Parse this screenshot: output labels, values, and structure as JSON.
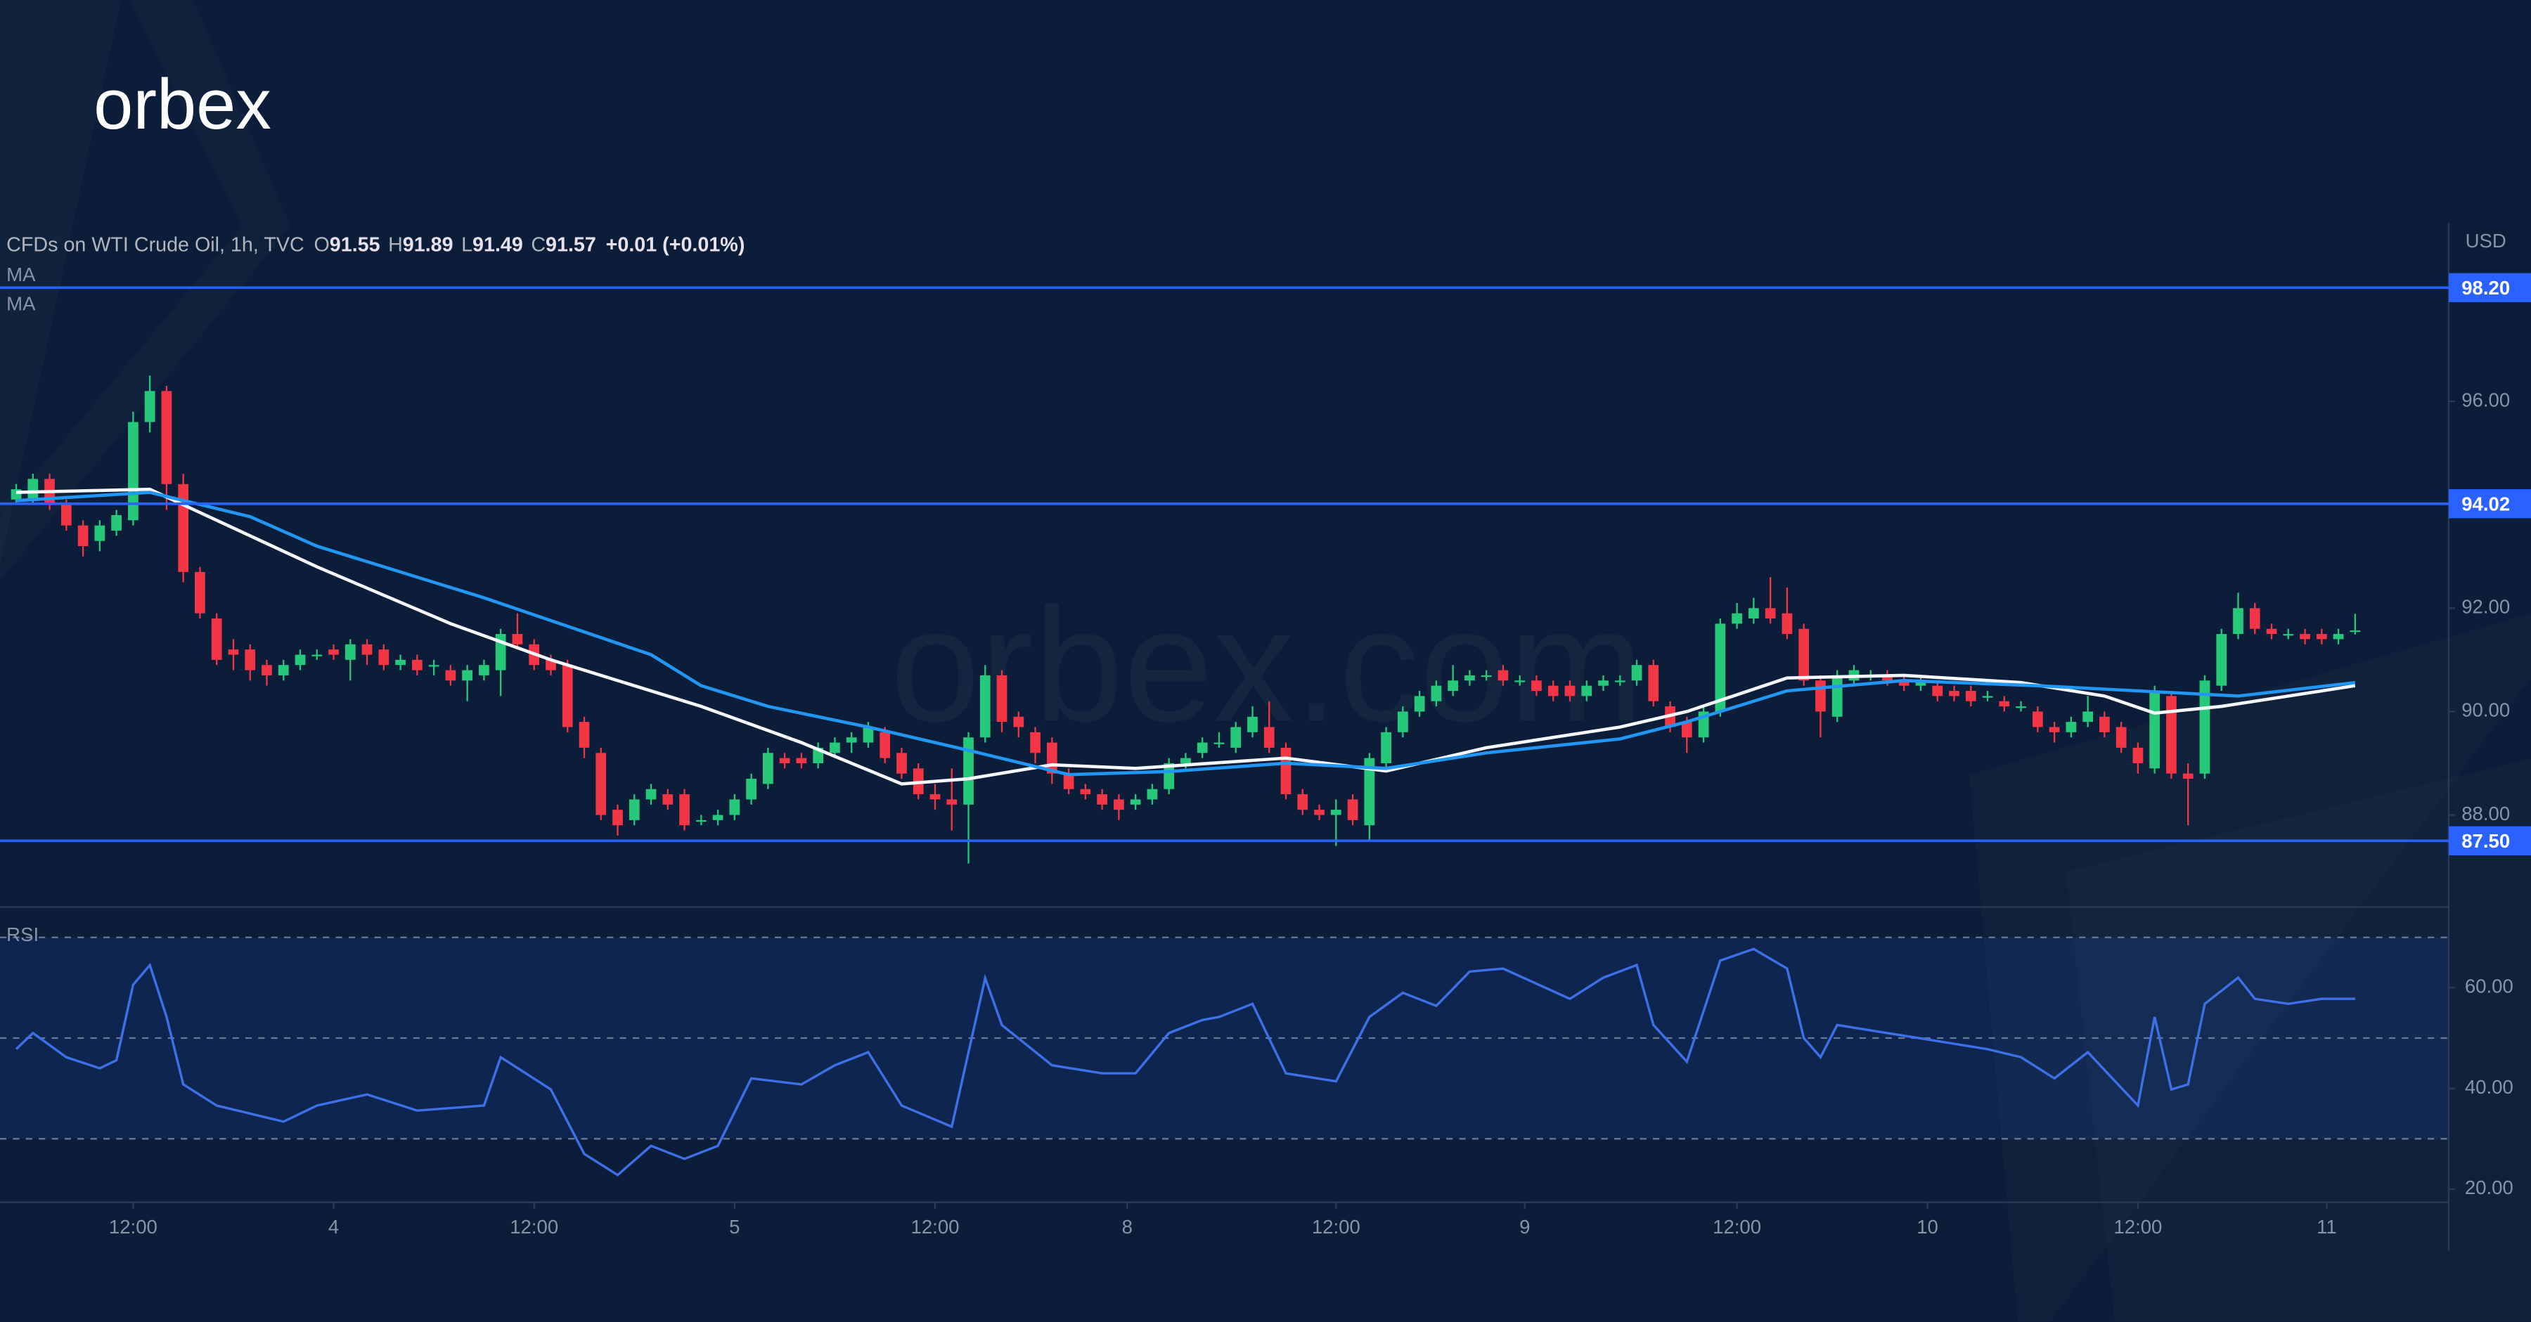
{
  "logo": "orbex",
  "watermark": "orbex.com",
  "chart_data": [
    {
      "type": "candlestick",
      "title": "CFDs on WTI Crude Oil, 1h, TVC",
      "currency": "USD",
      "ohlc_legend": [
        {
          "label": "O",
          "value": 91.55
        },
        {
          "label": "H",
          "value": 91.89
        },
        {
          "label": "L",
          "value": 91.49
        },
        {
          "label": "C",
          "value": 91.57
        }
      ],
      "change": "+0.01 (+0.01%)",
      "up_color": "#26c97a",
      "down_color": "#f23645",
      "xlim": [
        -0.97,
        145.6
      ],
      "ylim": [
        86.28,
        99.39
      ],
      "yticks": [
        {
          "value": 88,
          "label": "88.00"
        },
        {
          "value": 90,
          "label": "90.00"
        },
        {
          "value": 92,
          "label": "92.00"
        },
        {
          "value": 96,
          "label": "96.00"
        }
      ],
      "levels": [
        {
          "value": 98.2,
          "label": "98.20"
        },
        {
          "value": 94.02,
          "label": "94.02"
        },
        {
          "value": 87.5,
          "label": "87.50"
        }
      ],
      "level_color": "#2962ff",
      "open": [
        94.1,
        94.1,
        94.5,
        94.0,
        93.6,
        93.3,
        93.5,
        93.7,
        95.6,
        96.2,
        94.4,
        92.7,
        91.8,
        91.2,
        91.2,
        90.9,
        90.7,
        90.9,
        91.1,
        91.2,
        91.0,
        91.3,
        91.2,
        90.9,
        91.0,
        90.9,
        90.8,
        90.6,
        90.7,
        90.8,
        91.5,
        91.3,
        91.0,
        90.9,
        89.8,
        89.2,
        88.1,
        87.9,
        88.3,
        88.4,
        88.4,
        87.9,
        87.9,
        88.0,
        88.3,
        88.6,
        89.1,
        89.1,
        89.0,
        89.2,
        89.4,
        89.4,
        89.6,
        89.2,
        88.9,
        88.4,
        88.3,
        88.2,
        89.5,
        90.7,
        89.9,
        89.6,
        89.4,
        88.8,
        88.5,
        88.4,
        88.3,
        88.2,
        88.3,
        88.5,
        89.0,
        89.2,
        89.4,
        89.3,
        89.6,
        89.7,
        89.3,
        88.4,
        88.1,
        88.0,
        88.3,
        87.8,
        89.0,
        89.6,
        90.0,
        90.2,
        90.4,
        90.6,
        90.7,
        90.8,
        90.6,
        90.6,
        90.5,
        90.5,
        90.3,
        90.5,
        90.6,
        90.6,
        90.9,
        90.1,
        89.8,
        89.5,
        90.0,
        91.7,
        91.8,
        92.0,
        91.9,
        91.6,
        90.6,
        89.9,
        90.6,
        90.7,
        90.7,
        90.6,
        90.5,
        90.5,
        90.4,
        90.4,
        90.3,
        90.2,
        90.1,
        90.0,
        89.7,
        89.6,
        89.8,
        89.9,
        89.7,
        89.3,
        88.9,
        90.3,
        88.8,
        88.8,
        90.5,
        91.5,
        92.0,
        91.6,
        91.5,
        91.5,
        91.5,
        91.4,
        91.55
      ],
      "high": [
        94.4,
        94.6,
        94.6,
        94.1,
        93.7,
        93.7,
        93.9,
        95.8,
        96.5,
        96.3,
        94.6,
        92.8,
        91.9,
        91.4,
        91.3,
        91.0,
        91.0,
        91.2,
        91.2,
        91.3,
        91.4,
        91.4,
        91.3,
        91.1,
        91.1,
        91.0,
        90.9,
        90.9,
        91.0,
        91.6,
        91.9,
        91.4,
        91.1,
        91.0,
        89.9,
        89.3,
        88.2,
        88.4,
        88.6,
        88.5,
        88.5,
        88.0,
        88.1,
        88.4,
        88.8,
        89.3,
        89.2,
        89.2,
        89.4,
        89.5,
        89.6,
        89.8,
        89.7,
        89.3,
        89.0,
        88.6,
        88.9,
        89.6,
        90.9,
        90.8,
        90.0,
        89.7,
        89.5,
        88.9,
        88.6,
        88.5,
        88.4,
        88.4,
        88.6,
        89.1,
        89.2,
        89.5,
        89.6,
        89.8,
        90.1,
        90.2,
        89.4,
        88.5,
        88.2,
        88.3,
        88.4,
        89.2,
        89.7,
        90.1,
        90.4,
        90.6,
        90.9,
        90.8,
        90.8,
        90.9,
        90.7,
        90.7,
        90.6,
        90.6,
        90.6,
        90.7,
        90.7,
        91.0,
        91.0,
        90.2,
        89.9,
        90.1,
        91.8,
        92.1,
        92.2,
        92.6,
        92.4,
        91.7,
        90.7,
        90.8,
        90.9,
        90.8,
        90.8,
        90.7,
        90.7,
        90.6,
        90.5,
        90.5,
        90.4,
        90.3,
        90.2,
        90.1,
        89.8,
        89.9,
        90.3,
        90.0,
        89.8,
        89.4,
        90.5,
        90.4,
        89.0,
        90.7,
        91.6,
        92.3,
        92.1,
        91.7,
        91.6,
        91.6,
        91.6,
        91.6,
        91.89
      ],
      "low": [
        94.0,
        94.0,
        93.9,
        93.5,
        93.0,
        93.1,
        93.4,
        93.6,
        95.4,
        93.9,
        92.5,
        91.8,
        90.9,
        90.8,
        90.6,
        90.5,
        90.6,
        90.8,
        91.0,
        91.0,
        90.6,
        90.9,
        90.8,
        90.8,
        90.7,
        90.7,
        90.5,
        90.2,
        90.6,
        90.3,
        91.2,
        90.8,
        90.7,
        89.6,
        89.1,
        87.9,
        87.6,
        87.8,
        88.2,
        88.1,
        87.7,
        87.8,
        87.8,
        87.9,
        88.2,
        88.5,
        88.9,
        88.9,
        88.9,
        89.1,
        89.2,
        89.3,
        89.0,
        88.7,
        88.3,
        88.1,
        87.7,
        87.06,
        89.4,
        89.6,
        89.5,
        89.0,
        88.6,
        88.4,
        88.3,
        88.1,
        87.9,
        88.1,
        88.2,
        88.4,
        88.9,
        89.1,
        89.3,
        89.2,
        89.5,
        89.2,
        88.3,
        88.0,
        87.9,
        87.4,
        87.8,
        87.5,
        88.9,
        89.5,
        89.9,
        90.1,
        90.3,
        90.5,
        90.6,
        90.5,
        90.5,
        90.3,
        90.2,
        90.2,
        90.2,
        90.4,
        90.5,
        90.5,
        90.1,
        89.6,
        89.2,
        89.4,
        89.9,
        91.6,
        91.7,
        91.7,
        91.4,
        90.5,
        89.5,
        89.8,
        90.5,
        90.6,
        90.5,
        90.4,
        90.4,
        90.2,
        90.2,
        90.1,
        90.2,
        90.0,
        90.0,
        89.6,
        89.4,
        89.5,
        89.7,
        89.5,
        89.2,
        88.8,
        88.8,
        88.7,
        87.8,
        88.7,
        90.4,
        91.4,
        91.5,
        91.4,
        91.4,
        91.3,
        91.3,
        91.3,
        91.49
      ],
      "close": [
        94.3,
        94.5,
        94.0,
        93.6,
        93.2,
        93.6,
        93.8,
        95.6,
        96.2,
        94.4,
        92.7,
        91.9,
        91.0,
        91.1,
        90.8,
        90.7,
        90.9,
        91.1,
        91.1,
        91.1,
        91.3,
        91.1,
        90.9,
        91.0,
        90.8,
        90.9,
        90.6,
        90.8,
        90.9,
        91.5,
        91.3,
        90.9,
        90.8,
        89.7,
        89.3,
        88.0,
        87.8,
        88.3,
        88.5,
        88.2,
        87.8,
        87.9,
        88.0,
        88.3,
        88.7,
        89.2,
        89.0,
        89.0,
        89.3,
        89.4,
        89.5,
        89.7,
        89.1,
        88.8,
        88.4,
        88.3,
        88.2,
        89.5,
        90.7,
        89.8,
        89.7,
        89.2,
        88.8,
        88.5,
        88.4,
        88.2,
        88.1,
        88.3,
        88.5,
        89.0,
        89.1,
        89.4,
        89.4,
        89.7,
        89.9,
        89.3,
        88.4,
        88.1,
        88.0,
        88.1,
        87.9,
        89.1,
        89.6,
        90.0,
        90.3,
        90.5,
        90.6,
        90.7,
        90.7,
        90.6,
        90.6,
        90.4,
        90.3,
        90.3,
        90.5,
        90.6,
        90.6,
        90.9,
        90.2,
        89.7,
        89.5,
        90.0,
        91.7,
        91.9,
        92.0,
        91.8,
        91.5,
        90.6,
        90.0,
        90.7,
        90.8,
        90.7,
        90.6,
        90.5,
        90.6,
        90.3,
        90.3,
        90.2,
        90.3,
        90.1,
        90.1,
        89.7,
        89.6,
        89.8,
        90.0,
        89.6,
        89.3,
        89.0,
        90.4,
        88.8,
        88.7,
        90.6,
        91.5,
        92.0,
        91.6,
        91.5,
        91.5,
        91.4,
        91.4,
        91.5,
        91.57
      ],
      "series": [
        {
          "name": "MA",
          "color": "#f5f7fa",
          "x": [
            0,
            8,
            12,
            18,
            26,
            32,
            41,
            47,
            53,
            57,
            62,
            67,
            76,
            82,
            88,
            96,
            100,
            106,
            113,
            120,
            125,
            128,
            132,
            140
          ],
          "values": [
            94.24,
            94.3,
            93.7,
            92.8,
            91.7,
            91.0,
            90.1,
            89.4,
            88.6,
            88.7,
            88.97,
            88.9,
            89.1,
            88.85,
            89.3,
            89.7,
            90.0,
            90.65,
            90.7,
            90.56,
            90.3,
            89.97,
            90.1,
            90.5
          ]
        },
        {
          "name": "MA",
          "color": "#2196f3",
          "x": [
            0,
            8,
            14,
            18,
            28,
            38,
            41,
            45,
            51,
            57,
            63,
            69,
            76,
            82,
            88,
            96,
            100,
            106,
            113,
            121,
            127,
            133,
            140
          ],
          "values": [
            94.08,
            94.24,
            93.77,
            93.2,
            92.2,
            91.1,
            90.5,
            90.1,
            89.7,
            89.25,
            88.78,
            88.84,
            89.0,
            88.9,
            89.2,
            89.47,
            89.8,
            90.4,
            90.6,
            90.5,
            90.4,
            90.3,
            90.56
          ]
        }
      ]
    },
    {
      "type": "line",
      "title": "RSI",
      "color": "#3d6fe6",
      "band_upper": 70,
      "band_middle": 50,
      "band_lower": 30,
      "xlim": [
        -0.97,
        145.6
      ],
      "ylim": [
        17.37,
        75.06
      ],
      "yticks": [
        {
          "value": 20,
          "label": "20.00"
        },
        {
          "value": 40,
          "label": "40.00"
        },
        {
          "value": 60,
          "label": "60.00"
        }
      ],
      "xticks": [
        {
          "value": 7,
          "label": "12:00"
        },
        {
          "value": 19,
          "label": "4"
        },
        {
          "value": 31,
          "label": "12:00"
        },
        {
          "value": 43,
          "label": "5"
        },
        {
          "value": 55,
          "label": "12:00"
        },
        {
          "value": 66.5,
          "label": "8"
        },
        {
          "value": 79,
          "label": "12:00"
        },
        {
          "value": 90.3,
          "label": "9"
        },
        {
          "value": 103,
          "label": "12:00"
        },
        {
          "value": 114.4,
          "label": "10"
        },
        {
          "value": 127,
          "label": "12:00"
        },
        {
          "value": 138.3,
          "label": "11"
        }
      ],
      "x": [
        0,
        1,
        3,
        5,
        6,
        7,
        8,
        9,
        10,
        12,
        14,
        16,
        18,
        21,
        24,
        28,
        29,
        32,
        34,
        36,
        38,
        40,
        42,
        44,
        47,
        49,
        51,
        53,
        56,
        58,
        59,
        62,
        65,
        67,
        69,
        71,
        72,
        74,
        76,
        79,
        81,
        83,
        85,
        87,
        89,
        93,
        95,
        97,
        98,
        100,
        102,
        104,
        106,
        107,
        108,
        109,
        112,
        115,
        118,
        120,
        122,
        124,
        127,
        128,
        129,
        130,
        131,
        133,
        134,
        136,
        138,
        140
      ],
      "values": [
        47.8,
        51,
        46.2,
        44,
        45.6,
        60.6,
        64.5,
        54.2,
        40.8,
        36.6,
        35,
        33.4,
        36.6,
        38.8,
        35.6,
        36.6,
        46.2,
        39.8,
        27,
        22.8,
        28.6,
        26,
        28.6,
        42,
        40.8,
        44.6,
        47.2,
        36.6,
        32.4,
        61.9,
        52.6,
        44.6,
        43,
        43,
        51,
        53.6,
        54.2,
        56.8,
        43,
        41.4,
        54.2,
        59,
        56.4,
        63.2,
        63.8,
        57.8,
        62,
        64.5,
        52.6,
        45.3,
        65.4,
        67.7,
        63.8,
        50,
        46.2,
        52.6,
        51,
        49.4,
        47.8,
        46.2,
        42,
        47.2,
        36.6,
        54.2,
        39.8,
        40.8,
        56.8,
        62,
        57.8,
        56.8,
        57.8,
        57.8
      ]
    }
  ]
}
